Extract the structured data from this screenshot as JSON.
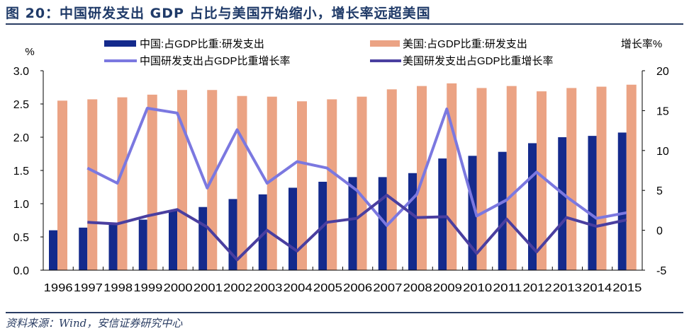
{
  "title": "图 20：中国研发支出 GDP 占比与美国开始缩小，增长率远超美国",
  "source": "资料来源：Wind，安信证券研究中心",
  "chart_data": {
    "type": "bar+line",
    "left_axis_unit": "%",
    "right_axis_unit": "增长率%",
    "categories": [
      "1996",
      "1997",
      "1998",
      "1999",
      "2000",
      "2001",
      "2002",
      "2003",
      "2004",
      "2005",
      "2006",
      "2007",
      "2008",
      "2009",
      "2010",
      "2011",
      "2012",
      "2013",
      "2014",
      "2015"
    ],
    "ylim_left": [
      0,
      3.0
    ],
    "yticks_left": [
      "0.0",
      "0.5",
      "1.0",
      "1.5",
      "2.0",
      "2.5",
      "3.0"
    ],
    "ylim_right": [
      -5,
      20
    ],
    "yticks_right": [
      "-5",
      "0",
      "5",
      "10",
      "15",
      "20"
    ],
    "grid": false,
    "legend_position": "top",
    "series": [
      {
        "name": "中国:占GDP比重:研发支出",
        "type": "bar",
        "axis": "left",
        "color": "#142a8c",
        "values": [
          0.6,
          0.64,
          0.69,
          0.76,
          0.9,
          0.95,
          1.07,
          1.14,
          1.24,
          1.33,
          1.4,
          1.4,
          1.46,
          1.68,
          1.72,
          1.78,
          1.91,
          2.0,
          2.02,
          2.07
        ]
      },
      {
        "name": "美国:占GDP比重:研发支出",
        "type": "bar",
        "axis": "left",
        "color": "#eba384",
        "values": [
          2.55,
          2.57,
          2.6,
          2.64,
          2.71,
          2.71,
          2.62,
          2.61,
          2.54,
          2.57,
          2.61,
          2.72,
          2.77,
          2.81,
          2.74,
          2.77,
          2.69,
          2.74,
          2.76,
          2.79
        ]
      },
      {
        "name": "中国研发支出占GDP比重增长率",
        "type": "line",
        "axis": "right",
        "color": "#7b78e0",
        "values": [
          null,
          7.8,
          5.9,
          15.3,
          14.7,
          5.3,
          12.6,
          5.9,
          8.6,
          7.8,
          5.0,
          0.6,
          4.5,
          15.2,
          1.8,
          3.8,
          7.3,
          4.2,
          1.5,
          2.2
        ]
      },
      {
        "name": "美国研发支出占GDP比重增长率",
        "type": "line",
        "axis": "right",
        "color": "#4a3fa0",
        "values": [
          null,
          1.0,
          0.8,
          1.8,
          2.6,
          0.4,
          -3.7,
          0.0,
          -2.6,
          1.0,
          1.5,
          4.4,
          1.6,
          1.7,
          -2.9,
          1.4,
          -2.7,
          1.6,
          0.5,
          1.3
        ]
      }
    ]
  }
}
